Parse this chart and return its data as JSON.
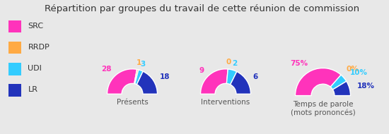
{
  "title": "Répartition par groupes du travail de cette réunion de commission",
  "background_color": "#e8e8e8",
  "legend_bg": "#ffffff",
  "legend_labels": [
    "SRC",
    "RRDP",
    "UDI",
    "LR"
  ],
  "colors": [
    "#ff33bb",
    "#ffaa44",
    "#33ccff",
    "#2233bb"
  ],
  "charts": [
    {
      "label": "Présents",
      "values": [
        28,
        1,
        3,
        18
      ],
      "display_values": [
        "28",
        "1",
        "3",
        "18"
      ]
    },
    {
      "label": "Interventions",
      "values": [
        9,
        0,
        2,
        6
      ],
      "display_values": [
        "9",
        "0",
        "2",
        "6"
      ]
    },
    {
      "label": "Temps de parole\n(mots prononcés)",
      "values": [
        75,
        0,
        10,
        18
      ],
      "display_values": [
        "75%",
        "0%",
        "10%",
        "18%"
      ]
    }
  ],
  "title_fontsize": 9.5,
  "label_fontsize": 7.5,
  "legend_fontsize": 8,
  "value_fontsize": 7.5
}
